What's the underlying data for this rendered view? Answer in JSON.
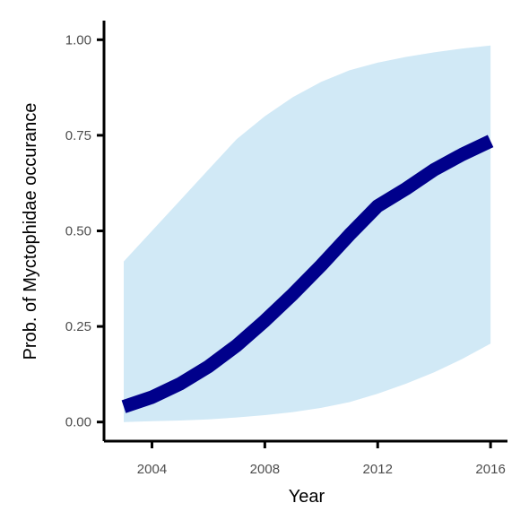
{
  "chart_data": {
    "type": "line",
    "title": "",
    "xlabel": "Year",
    "ylabel": "Prob. of  Myctophidae  occurance",
    "xlim": [
      2002.3,
      2016.6
    ],
    "ylim": [
      -0.05,
      1.05
    ],
    "x_ticks": [
      2004,
      2008,
      2012,
      2016
    ],
    "x_tick_labels": [
      "2004",
      "2008",
      "2012",
      "2016"
    ],
    "y_ticks": [
      0.0,
      0.25,
      0.5,
      0.75,
      1.0
    ],
    "y_tick_labels": [
      "0.00",
      "0.25",
      "0.50",
      "0.75",
      "1.00"
    ],
    "grid": false,
    "legend": "none",
    "x": [
      2003,
      2004,
      2005,
      2006,
      2007,
      2008,
      2009,
      2010,
      2011,
      2012,
      2013,
      2014,
      2015,
      2016
    ],
    "series": [
      {
        "values": [
          0.04,
          0.065,
          0.1,
          0.145,
          0.2,
          0.265,
          0.335,
          0.41,
          0.49,
          0.565,
          0.61,
          0.66,
          0.7,
          0.735
        ],
        "lower": [
          0.0,
          0.002,
          0.004,
          0.007,
          0.012,
          0.018,
          0.026,
          0.037,
          0.052,
          0.074,
          0.1,
          0.13,
          0.165,
          0.205
        ],
        "upper": [
          0.42,
          0.5,
          0.58,
          0.66,
          0.74,
          0.8,
          0.85,
          0.89,
          0.92,
          0.94,
          0.955,
          0.967,
          0.977,
          0.985
        ]
      }
    ],
    "colors": {
      "line": "#00008b",
      "ribbon": "#d1e9f6",
      "axis": "#000000",
      "tick_text": "#4d4d4d"
    }
  }
}
